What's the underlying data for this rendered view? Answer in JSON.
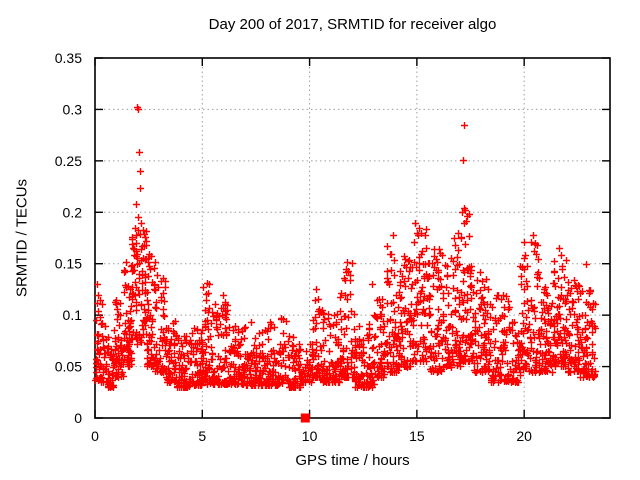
{
  "chart_data": {
    "type": "scatter",
    "title": "Day 200 of 2017, SRMTID for receiver algo",
    "xlabel": "GPS time / hours",
    "ylabel": "SRMTID / TECUs",
    "xlim": [
      0,
      24
    ],
    "ylim": [
      0,
      0.35
    ],
    "xticks": {
      "values": [
        0,
        5,
        10,
        15,
        20
      ],
      "labels": [
        "0",
        "5",
        "10",
        "15",
        "20"
      ]
    },
    "yticks": {
      "values": [
        0,
        0.05,
        0.1,
        0.15,
        0.2,
        0.25,
        0.3,
        0.35
      ],
      "labels": [
        "0",
        "0.05",
        "0.1",
        "0.15",
        "0.2",
        "0.25",
        "0.3",
        "0.35"
      ]
    },
    "grid": true,
    "legend": "none",
    "marker": {
      "type": "plus",
      "color": "#ff0000",
      "size": 7,
      "stroke_width": 1.4
    },
    "special_points": [
      {
        "x": 9.8,
        "y": 0,
        "marker": "filled-square",
        "color": "#ff0000",
        "size": 9
      }
    ],
    "outlier_points": [
      [
        1.95,
        0.302
      ],
      [
        2.02,
        0.3
      ],
      [
        2.05,
        0.259
      ],
      [
        2.1,
        0.24
      ],
      [
        2.08,
        0.224
      ],
      [
        1.91,
        0.208
      ],
      [
        2.0,
        0.195
      ],
      [
        2.15,
        0.19
      ],
      [
        1.85,
        0.185
      ],
      [
        17.2,
        0.285
      ],
      [
        17.15,
        0.251
      ],
      [
        17.25,
        0.202
      ],
      [
        17.32,
        0.196
      ],
      [
        17.18,
        0.19
      ],
      [
        16.9,
        0.18
      ],
      [
        17.05,
        0.175
      ],
      [
        0.1,
        0.13
      ],
      [
        0.15,
        0.12
      ],
      [
        0.08,
        0.112
      ],
      [
        5.2,
        0.131
      ],
      [
        5.25,
        0.122
      ],
      [
        5.15,
        0.115
      ],
      [
        5.95,
        0.12
      ],
      [
        6.05,
        0.113
      ],
      [
        10.3,
        0.125
      ],
      [
        11.75,
        0.152
      ],
      [
        11.8,
        0.143
      ],
      [
        12.9,
        0.13
      ],
      [
        13.9,
        0.178
      ],
      [
        14.9,
        0.19
      ],
      [
        15.1,
        0.185
      ],
      [
        15.0,
        0.18
      ],
      [
        17.95,
        0.142
      ],
      [
        20.4,
        0.178
      ],
      [
        20.5,
        0.17
      ],
      [
        20.45,
        0.162
      ],
      [
        21.6,
        0.165
      ],
      [
        21.7,
        0.158
      ],
      [
        22.9,
        0.15
      ]
    ],
    "cloud_segments": [
      [
        0.0,
        0.4,
        45,
        0.035,
        0.125,
        1.8
      ],
      [
        0.4,
        0.9,
        50,
        0.03,
        0.09,
        2.0
      ],
      [
        0.9,
        1.3,
        50,
        0.04,
        0.12,
        1.8
      ],
      [
        1.3,
        1.7,
        55,
        0.05,
        0.155,
        1.5
      ],
      [
        1.7,
        2.4,
        90,
        0.07,
        0.185,
        1.3
      ],
      [
        2.4,
        2.8,
        55,
        0.05,
        0.16,
        1.8
      ],
      [
        2.8,
        3.3,
        55,
        0.045,
        0.14,
        2.0
      ],
      [
        3.3,
        3.8,
        50,
        0.035,
        0.1,
        2.2
      ],
      [
        3.8,
        4.5,
        65,
        0.03,
        0.08,
        2.2
      ],
      [
        4.5,
        5.0,
        55,
        0.032,
        0.095,
        2.4
      ],
      [
        5.0,
        5.5,
        55,
        0.033,
        0.13,
        2.6
      ],
      [
        5.5,
        6.2,
        70,
        0.033,
        0.115,
        2.6
      ],
      [
        6.2,
        7.0,
        80,
        0.033,
        0.09,
        2.4
      ],
      [
        7.0,
        8.0,
        95,
        0.032,
        0.095,
        2.4
      ],
      [
        8.0,
        9.0,
        95,
        0.032,
        0.1,
        2.5
      ],
      [
        9.0,
        9.6,
        50,
        0.03,
        0.08,
        2.3
      ],
      [
        9.6,
        10.1,
        30,
        0.035,
        0.075,
        2.2
      ],
      [
        10.1,
        10.6,
        50,
        0.04,
        0.12,
        2.4
      ],
      [
        10.6,
        11.4,
        75,
        0.035,
        0.105,
        2.3
      ],
      [
        11.4,
        12.1,
        70,
        0.04,
        0.155,
        2.4
      ],
      [
        12.1,
        13.0,
        85,
        0.03,
        0.095,
        2.2
      ],
      [
        13.0,
        13.5,
        50,
        0.04,
        0.12,
        2.2
      ],
      [
        13.5,
        14.2,
        70,
        0.045,
        0.175,
        2.0
      ],
      [
        14.2,
        14.7,
        55,
        0.05,
        0.16,
        1.9
      ],
      [
        14.7,
        15.6,
        90,
        0.055,
        0.185,
        1.7
      ],
      [
        15.6,
        16.3,
        70,
        0.045,
        0.165,
        2.0
      ],
      [
        16.3,
        17.0,
        75,
        0.05,
        0.175,
        1.9
      ],
      [
        17.0,
        17.6,
        65,
        0.055,
        0.205,
        1.8
      ],
      [
        17.6,
        18.4,
        80,
        0.045,
        0.135,
        1.9
      ],
      [
        18.4,
        19.3,
        80,
        0.035,
        0.12,
        2.1
      ],
      [
        19.3,
        19.8,
        45,
        0.035,
        0.11,
        2.2
      ],
      [
        19.8,
        20.7,
        90,
        0.045,
        0.175,
        2.0
      ],
      [
        20.7,
        21.3,
        65,
        0.045,
        0.13,
        2.0
      ],
      [
        21.3,
        22.0,
        80,
        0.05,
        0.16,
        1.9
      ],
      [
        22.0,
        22.6,
        70,
        0.045,
        0.135,
        1.9
      ],
      [
        22.6,
        23.3,
        75,
        0.04,
        0.125,
        1.8
      ]
    ],
    "seed": 1234567,
    "colors": {
      "background": "#ffffff",
      "frame": "#000000",
      "grid": "#9e9e9e",
      "text": "#000000",
      "points": "#ff0000"
    }
  }
}
